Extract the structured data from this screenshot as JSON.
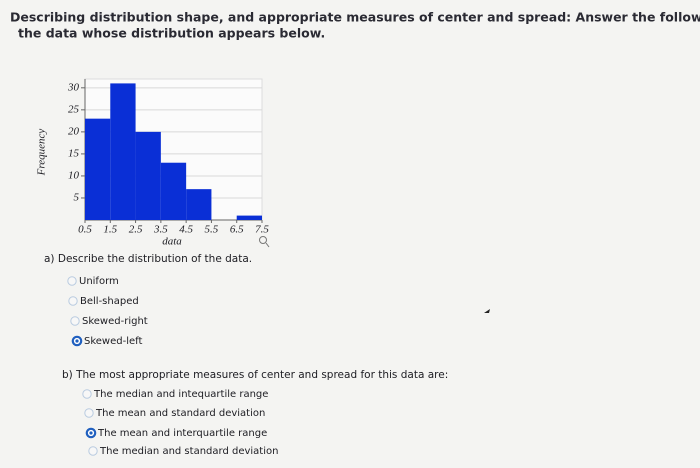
{
  "header": {
    "text": [
      "Describing distribution shape, and appropriate measures of center and spread: Answer the following about",
      "the data whose distribution appears below."
    ]
  },
  "chart_data": {
    "type": "histogram",
    "ylabel": "Frequency",
    "xlabel": "data",
    "bins": [
      0.5,
      1.5,
      2.5,
      3.5,
      4.5,
      5.5,
      6.5,
      7.5
    ],
    "values": [
      23,
      31,
      20,
      13,
      7,
      0,
      1
    ],
    "color": "#0a2fd6",
    "xlim": [
      0.5,
      7.5
    ],
    "xticks": [
      0.5,
      1.5,
      2.5,
      3.5,
      4.5,
      5.5,
      6.5,
      7.5
    ],
    "ylim": [
      0,
      32
    ],
    "yticks": [
      5,
      10,
      15,
      20,
      25,
      30
    ],
    "grid": true
  },
  "question_a": {
    "prompt": "a) Describe the distribution of the data.",
    "options": [
      "Uniform",
      "Bell-shaped",
      "Skewed-right",
      "Skewed-left"
    ],
    "selected": 3
  },
  "question_b": {
    "prompt": "b) The most appropriate measures of center and spread for this data are:",
    "options": [
      "The median and intequartile range",
      "The mean and standard deviation",
      "The mean and interquartile range",
      "The median and standard deviation"
    ],
    "selected": 2
  }
}
